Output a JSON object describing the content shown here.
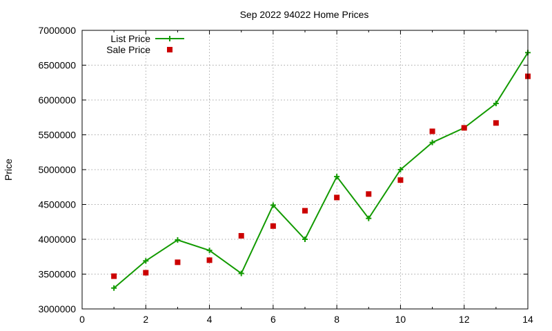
{
  "chart_data": {
    "type": "line",
    "title": "Sep 2022 94022 Home Prices",
    "xlabel": "",
    "ylabel": "Price",
    "xlim": [
      0,
      14
    ],
    "ylim": [
      3000000,
      7000000
    ],
    "x_ticks": [
      "0",
      "2",
      "4",
      "6",
      "8",
      "10",
      "12",
      "14"
    ],
    "y_ticks": [
      "3000000",
      "3500000",
      "4000000",
      "4500000",
      "5000000",
      "5500000",
      "6000000",
      "6500000",
      "7000000"
    ],
    "grid": true,
    "legend_position": "top-left",
    "series": [
      {
        "name": "List Price",
        "style": "lines+points",
        "marker": "plus",
        "color": "#129a00",
        "x": [
          1,
          2,
          3,
          4,
          5,
          6,
          7,
          8,
          9,
          10,
          11,
          12,
          13,
          14
        ],
        "values": [
          3300000,
          3690000,
          3990000,
          3840000,
          3510000,
          4490000,
          4000000,
          4900000,
          4300000,
          5000000,
          5390000,
          5600000,
          5950000,
          6680000
        ]
      },
      {
        "name": "Sale Price",
        "style": "points",
        "marker": "square",
        "color": "#cc0000",
        "x": [
          1,
          2,
          3,
          4,
          5,
          6,
          7,
          8,
          9,
          10,
          11,
          12,
          13,
          14
        ],
        "values": [
          3470000,
          3520000,
          3670000,
          3700000,
          4050000,
          4190000,
          4410000,
          4600000,
          4650000,
          4850000,
          5550000,
          5600000,
          5670000,
          6340000
        ]
      }
    ]
  }
}
